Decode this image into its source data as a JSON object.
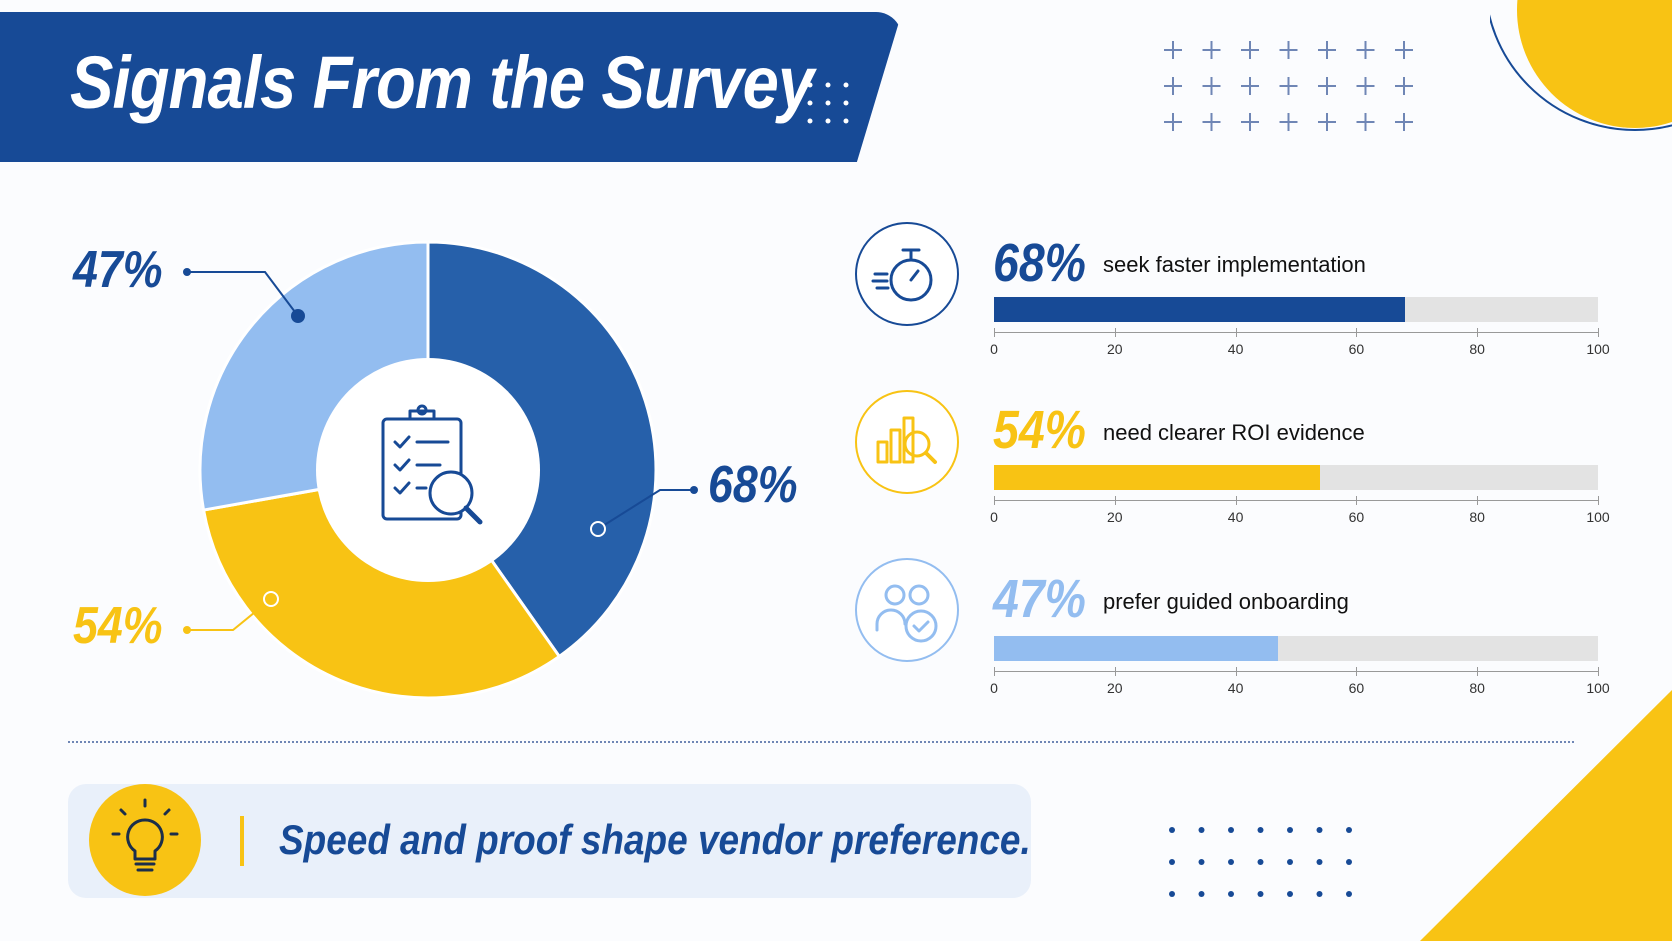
{
  "header": {
    "title": "Signals From the Survey"
  },
  "colors": {
    "dark_blue": "#174a96",
    "mid_blue": "#2660aa",
    "light_blue": "#93bdf0",
    "yellow": "#f8c314",
    "track": "#e3e3e3"
  },
  "donut": {
    "center_icon": "clipboard-magnifier-icon",
    "callouts": {
      "top_left": "47%",
      "right": "68%",
      "bottom_left": "54%"
    }
  },
  "rows": [
    {
      "pct": "68%",
      "label": "seek faster implementation",
      "icon": "stopwatch-icon"
    },
    {
      "pct": "54%",
      "label": "need clearer ROI evidence",
      "icon": "chart-magnifier-icon"
    },
    {
      "pct": "47%",
      "label": "prefer guided onboarding",
      "icon": "people-check-icon"
    }
  ],
  "insight": {
    "text": "Speed and proof shape vendor preference.",
    "icon": "lightbulb-icon"
  },
  "chart_data": [
    {
      "type": "pie",
      "categories": [
        "seek faster implementation",
        "need clearer ROI evidence",
        "prefer guided onboarding"
      ],
      "values": [
        68,
        54,
        47
      ],
      "data_labels": [
        "68%",
        "54%",
        "47%"
      ]
    },
    {
      "type": "bar",
      "orientation": "horizontal",
      "categories": [
        "seek faster implementation",
        "need clearer ROI evidence",
        "prefer guided onboarding"
      ],
      "values": [
        68,
        54,
        47
      ],
      "xlim": [
        0,
        100
      ],
      "xticks": [
        "0",
        "20",
        "40",
        "60",
        "80",
        "100"
      ]
    }
  ]
}
